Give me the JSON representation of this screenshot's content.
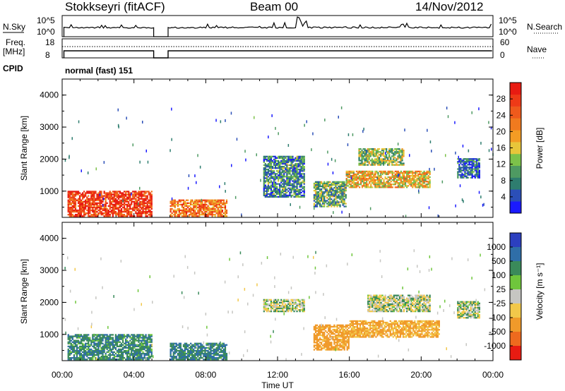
{
  "header": {
    "station": "Stokkseyri (fitACF)",
    "beam": "Beam 00",
    "date": "14/Nov/2012"
  },
  "left_labels": {
    "nsky": "N.Sky",
    "freq_line1": "Freq.",
    "freq_line2": "[MHz]",
    "cpid": "CPID"
  },
  "right_labels": {
    "nsearch": "N.Search",
    "nave": "Nave"
  },
  "top_panel_ticks": {
    "nsky_left_hi": "10^5",
    "nsky_left_lo": "10^0",
    "nsky_right_hi": "10^5",
    "nsky_right_lo": "10^0",
    "freq_left_hi": "18",
    "freq_left_lo": "8",
    "nave_right_hi": "60",
    "nave_right_lo": "0"
  },
  "cpid_text": "normal (fast) 151",
  "x_axis": {
    "label": "Time UT",
    "ticks": [
      "00:00",
      "04:00",
      "08:00",
      "12:00",
      "16:00",
      "20:00",
      "00:00"
    ]
  },
  "y_axis": {
    "label": "Slant Range [km]",
    "ticks": [
      "1000",
      "2000",
      "3000",
      "4000"
    ]
  },
  "colorbars": {
    "power": {
      "label": "Power [dB]",
      "ticks": [
        "4",
        "8",
        "12",
        "16",
        "20",
        "24",
        "28"
      ],
      "colors": [
        "#1a1aff",
        "#2b4fb8",
        "#2e7d6f",
        "#4e9a62",
        "#7cc24a",
        "#e8c63a",
        "#f39c24",
        "#f07a1f",
        "#ef5a1c",
        "#ee3a17",
        "#e81b12"
      ]
    },
    "velocity": {
      "label": "Velocity [m s⁻¹]",
      "ticks": [
        "1000",
        "500",
        "100",
        "25",
        "-25",
        "-100",
        "-500",
        "-1000"
      ],
      "colors": [
        "#2c3fbf",
        "#2f6ea8",
        "#3a8a5a",
        "#6fc63c",
        "#c6c6c2",
        "#f2c84a",
        "#f09a2a",
        "#ee6a1e",
        "#e81b12"
      ]
    }
  },
  "chart_data": [
    {
      "type": "heatmap",
      "title": "Power",
      "xlabel": "Time UT",
      "ylabel": "Slant Range [km]",
      "xlim": [
        0,
        24
      ],
      "ylim": [
        180,
        4500
      ],
      "colorbar_label": "Power [dB]",
      "colorbar_range": [
        3,
        30
      ],
      "data_gaps_hours": [
        [
          5.1,
          5.9
        ]
      ],
      "regions": [
        {
          "t0": 0.3,
          "t1": 5.0,
          "r0": 200,
          "r1": 1000,
          "value": 26
        },
        {
          "t0": 6.0,
          "t1": 9.2,
          "r0": 200,
          "r1": 700,
          "value": 22
        },
        {
          "t0": 11.2,
          "t1": 13.5,
          "r0": 800,
          "r1": 2100,
          "value": 10
        },
        {
          "t0": 14.0,
          "t1": 15.8,
          "r0": 500,
          "r1": 1300,
          "value": 12
        },
        {
          "t0": 15.8,
          "t1": 20.5,
          "r0": 1100,
          "r1": 1600,
          "value": 18
        },
        {
          "t0": 16.5,
          "t1": 19.0,
          "r0": 1800,
          "r1": 2300,
          "value": 14
        },
        {
          "t0": 22.0,
          "t1": 23.2,
          "r0": 1400,
          "r1": 2000,
          "value": 8
        }
      ]
    },
    {
      "type": "heatmap",
      "title": "Velocity",
      "xlabel": "Time UT",
      "ylabel": "Slant Range [km]",
      "xlim": [
        0,
        24
      ],
      "ylim": [
        180,
        4500
      ],
      "colorbar_label": "Velocity [m s⁻¹]",
      "colorbar_range": [
        -1000,
        1000
      ],
      "data_gaps_hours": [
        [
          5.1,
          5.9
        ]
      ],
      "regions": [
        {
          "t0": 0.3,
          "t1": 5.0,
          "r0": 200,
          "r1": 1000,
          "value": 80
        },
        {
          "t0": 6.0,
          "t1": 9.2,
          "r0": 200,
          "r1": 700,
          "value": 90
        },
        {
          "t0": 11.2,
          "t1": 13.5,
          "r0": 1700,
          "r1": 2100,
          "value": 0
        },
        {
          "t0": 14.0,
          "t1": 16.0,
          "r0": 500,
          "r1": 1300,
          "value": -150
        },
        {
          "t0": 16.0,
          "t1": 21.0,
          "r0": 900,
          "r1": 1400,
          "value": -120
        },
        {
          "t0": 17.0,
          "t1": 20.5,
          "r0": 1700,
          "r1": 2200,
          "value": 0
        },
        {
          "t0": 22.0,
          "t1": 23.2,
          "r0": 1500,
          "r1": 2000,
          "value": 0
        }
      ]
    }
  ]
}
